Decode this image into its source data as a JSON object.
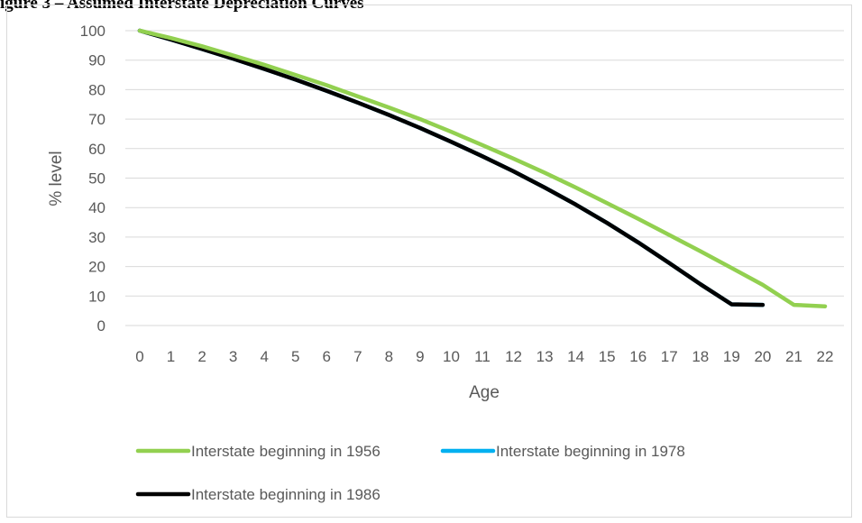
{
  "page_title": "igure 3 – Assumed Interstate Depreciation Curves",
  "chart_data": {
    "type": "line",
    "title": "",
    "xlabel": "Age",
    "ylabel": "% level",
    "x": [
      0,
      1,
      2,
      3,
      4,
      5,
      6,
      7,
      8,
      9,
      10,
      11,
      12,
      13,
      14,
      15,
      16,
      17,
      18,
      19,
      20,
      21,
      22
    ],
    "ylim": [
      0,
      100
    ],
    "yticks": [
      0,
      10,
      20,
      30,
      40,
      50,
      60,
      70,
      80,
      90,
      100
    ],
    "grid": true,
    "legend_position": "bottom",
    "series": [
      {
        "name": "Interstate beginning in 1956",
        "color": "#92d050",
        "x": [
          0,
          1,
          2,
          3,
          4,
          5,
          6,
          7,
          8,
          9,
          10,
          11,
          12,
          13,
          14,
          15,
          16,
          17,
          18,
          19,
          20,
          21,
          22
        ],
        "y": [
          100,
          97.5,
          94.7,
          91.6,
          88.4,
          85,
          81.5,
          77.7,
          73.9,
          70,
          65.7,
          61.2,
          56.6,
          51.8,
          46.8,
          41.5,
          36.2,
          30.7,
          25.2,
          19.5,
          13.8,
          7,
          6.5
        ]
      },
      {
        "name": "Interstate beginning in 1978",
        "color": "#00b0f0",
        "x": [
          0,
          1,
          2,
          3,
          4,
          5,
          6,
          7,
          8,
          9,
          10,
          11,
          12,
          13,
          14,
          15,
          16,
          17,
          18,
          19,
          20
        ],
        "y": [
          100,
          97,
          93.8,
          90.5,
          87,
          83.4,
          79.6,
          75.6,
          71.4,
          67,
          62.3,
          57.4,
          52.3,
          46.8,
          41,
          34.8,
          28.2,
          21.2,
          14,
          7.2,
          7
        ]
      },
      {
        "name": "Interstate beginning in 1986",
        "color": "#000000",
        "x": [
          0,
          1,
          2,
          3,
          4,
          5,
          6,
          7,
          8,
          9,
          10,
          11,
          12,
          13,
          14,
          15,
          16,
          17,
          18,
          19,
          20
        ],
        "y": [
          100,
          97,
          93.8,
          90.5,
          87,
          83.4,
          79.6,
          75.6,
          71.4,
          67,
          62.3,
          57.4,
          52.3,
          46.8,
          41,
          34.8,
          28.2,
          21.2,
          14,
          7.2,
          7
        ]
      }
    ]
  }
}
